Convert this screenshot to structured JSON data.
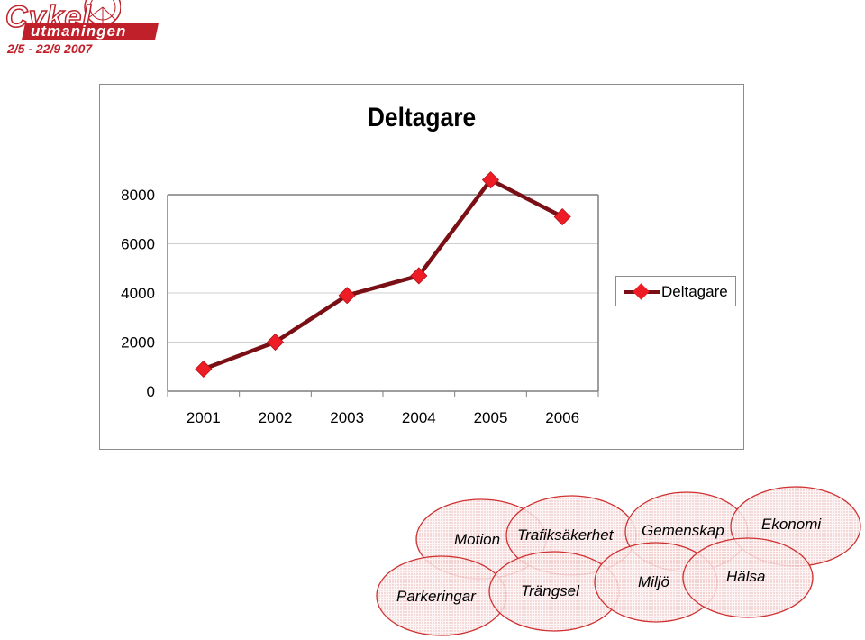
{
  "logo": {
    "brand": "Cykel",
    "subtitle": "utmaningen",
    "dates": "2/5 - 22/9 2007"
  },
  "chart_data": {
    "type": "line",
    "title": "Deltagare",
    "xlabel": "",
    "ylabel": "",
    "categories": [
      "2001",
      "2002",
      "2003",
      "2004",
      "2005",
      "2006"
    ],
    "series": [
      {
        "name": "Deltagare",
        "values": [
          900,
          2000,
          3900,
          4700,
          8600,
          7100
        ]
      }
    ],
    "ylim": [
      0,
      8000
    ],
    "yticks": [
      0,
      2000,
      4000,
      6000,
      8000
    ],
    "grid": true,
    "legend_position": "right",
    "colors": {
      "line": "#7a0f15",
      "marker": "#ee1c25"
    }
  },
  "bubbles": [
    {
      "label": "Motion"
    },
    {
      "label": "Trafiksäkerhet"
    },
    {
      "label": "Gemenskap"
    },
    {
      "label": "Ekonomi"
    },
    {
      "label": "Parkeringar"
    },
    {
      "label": "Trängsel"
    },
    {
      "label": "Miljö"
    },
    {
      "label": "Hälsa"
    }
  ],
  "bubble_colors": {
    "stroke": "#d03030",
    "fill": "#fbe6e6"
  }
}
